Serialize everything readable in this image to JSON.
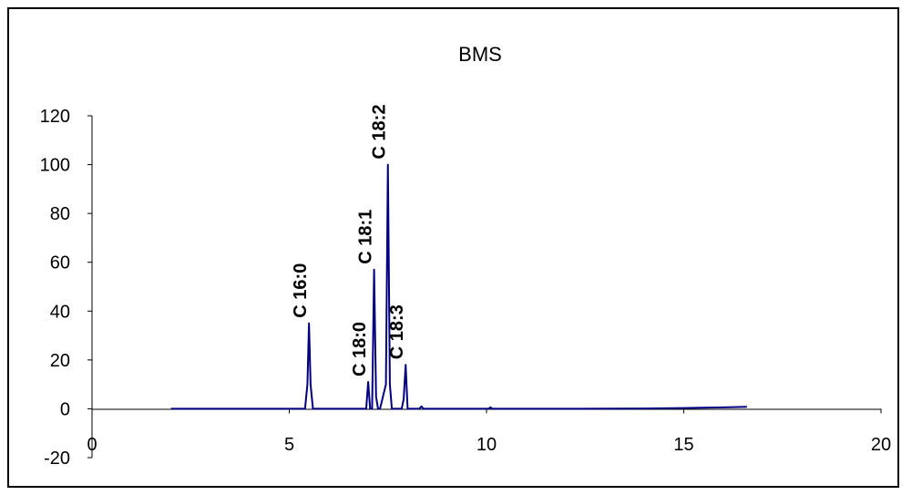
{
  "chart_data": {
    "type": "line",
    "title": "BMS",
    "xlabel": "",
    "ylabel": "",
    "xlim": [
      0,
      20
    ],
    "ylim": [
      -20,
      120
    ],
    "x_ticks": [
      0,
      5,
      10,
      15,
      20
    ],
    "y_ticks": [
      -20,
      0,
      20,
      40,
      60,
      80,
      100,
      120
    ],
    "grid": false,
    "legend": "none",
    "line_color": "#000080",
    "series": [
      {
        "x": [
          2.0,
          4.0,
          5.4,
          5.46,
          5.5,
          5.54,
          5.6,
          6.3,
          6.95,
          7.0,
          7.05,
          7.1,
          7.15,
          7.2,
          7.25,
          7.3,
          7.45,
          7.5,
          7.55,
          7.6,
          7.85,
          7.9,
          7.95,
          8.0,
          8.3,
          8.35,
          8.4,
          9.5,
          10.05,
          10.1,
          10.15,
          11.0,
          12.0,
          14.0,
          15.0,
          16.0,
          16.6
        ],
        "y": [
          0,
          0,
          0,
          10,
          35,
          10,
          0,
          0,
          0,
          11,
          0,
          0,
          57,
          5,
          0,
          0,
          10,
          100,
          10,
          0,
          0,
          4,
          18,
          0,
          0,
          1,
          0,
          0,
          0,
          0.6,
          0,
          0,
          0,
          0.1,
          0.3,
          0.6,
          0.8
        ]
      }
    ],
    "annotations": [
      {
        "text": "C 16:0",
        "x": 5.5,
        "y": 35
      },
      {
        "text": "C 18:0",
        "x": 7.0,
        "y": 11
      },
      {
        "text": "C 18:1",
        "x": 7.15,
        "y": 57
      },
      {
        "text": "C 18:2",
        "x": 7.5,
        "y": 100
      },
      {
        "text": "C 18:3",
        "x": 7.95,
        "y": 18
      }
    ]
  }
}
